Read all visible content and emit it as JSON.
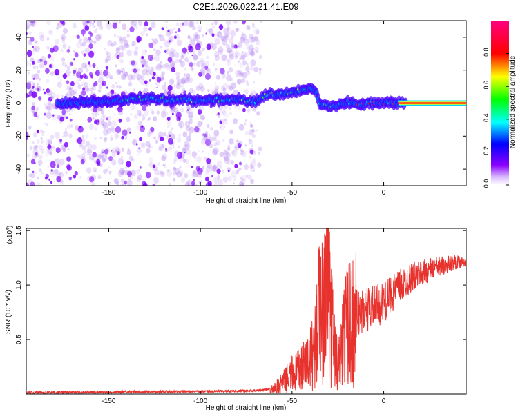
{
  "chart_data": [
    {
      "type": "heatmap",
      "title": "C2E1.2026.022.21.41.E09",
      "xlabel": "Height of straight line (km)",
      "ylabel": "Frequency (Hz)",
      "xlim": [
        -195,
        45
      ],
      "ylim": [
        -50,
        50
      ],
      "xticks": [
        -150,
        -100,
        -50,
        0
      ],
      "xtick_labels": [
        "-150",
        "-100",
        "-50",
        "0"
      ],
      "yticks": [
        -40,
        -20,
        0,
        20,
        40
      ],
      "ytick_labels": [
        "-40",
        "-20",
        "0",
        "20",
        "40"
      ],
      "ridge": {
        "x": [
          -175,
          -160,
          -145,
          -130,
          -115,
          -100,
          -85,
          -70,
          -65,
          -55,
          -45,
          -38,
          -35,
          -30,
          -25,
          -20,
          -10,
          0,
          10,
          45
        ],
        "y": [
          0,
          1,
          1.5,
          3,
          2,
          1.5,
          2.5,
          1,
          5,
          5.5,
          7.5,
          9,
          0,
          -3,
          -1,
          0.5,
          -0.5,
          0.5,
          0,
          0
        ]
      },
      "noise_region_x": [
        -195,
        -67
      ]
    },
    {
      "type": "colorbar",
      "label": "Normalized spectral amplitude",
      "range": [
        0,
        1
      ],
      "ticks": [
        0.0,
        0.2,
        0.4,
        0.6,
        0.8
      ],
      "tick_labels": [
        "0.0",
        "0.2",
        "0.4",
        "0.6",
        "0.8"
      ],
      "colors": [
        "#ffffff",
        "#8b00ff",
        "#0000ff",
        "#00ffff",
        "#00ff00",
        "#ffff00",
        "#ff0000",
        "#ff00aa"
      ]
    },
    {
      "type": "line",
      "xlabel": "Height of straight line (km)",
      "ylabel": "SNR (10 * v/v)",
      "scale_label": "(x10",
      "scale_exp": "4",
      "scale_close": ")",
      "xlim": [
        -195,
        45
      ],
      "ylim": [
        0,
        1.52
      ],
      "xticks": [
        -150,
        -100,
        -50,
        0
      ],
      "xtick_labels": [
        "-150",
        "-100",
        "-50",
        "0"
      ],
      "yticks": [
        0.5,
        1.0,
        1.5
      ],
      "ytick_labels": [
        "0.5",
        "1.0",
        "1.5"
      ],
      "series": [
        {
          "name": "SNR",
          "color": "#e8322e",
          "x": [
            -195,
            -150,
            -100,
            -70,
            -60,
            -55,
            -50,
            -45,
            -40,
            -37,
            -35,
            -33,
            -32,
            -31,
            -30,
            -28,
            -25,
            -22,
            -20,
            -15,
            -10,
            -5,
            0,
            5,
            10,
            15,
            20,
            25,
            30,
            35,
            40,
            45
          ],
          "y": [
            0.015,
            0.02,
            0.025,
            0.03,
            0.05,
            0.12,
            0.2,
            0.25,
            0.35,
            0.55,
            0.85,
            1.0,
            1.35,
            1.55,
            1.1,
            0.6,
            0.25,
            0.55,
            0.7,
            0.75,
            0.8,
            0.82,
            0.85,
            0.95,
            1.02,
            1.08,
            1.12,
            1.15,
            1.18,
            1.2,
            1.22,
            1.2
          ]
        }
      ]
    }
  ]
}
